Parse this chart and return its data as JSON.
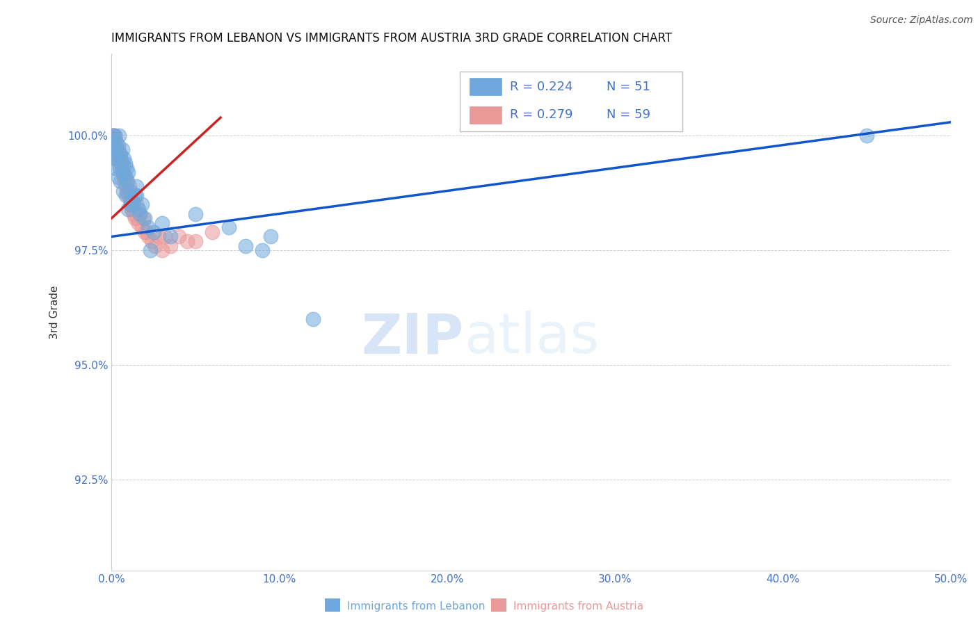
{
  "title": "IMMIGRANTS FROM LEBANON VS IMMIGRANTS FROM AUSTRIA 3RD GRADE CORRELATION CHART",
  "source": "Source: ZipAtlas.com",
  "ylabel": "3rd Grade",
  "xlim": [
    0.0,
    50.0
  ],
  "ylim": [
    90.5,
    101.8
  ],
  "yticks": [
    92.5,
    95.0,
    97.5,
    100.0
  ],
  "ytick_labels": [
    "92.5%",
    "95.0%",
    "97.5%",
    "100.0%"
  ],
  "xticks": [
    0.0,
    10.0,
    20.0,
    30.0,
    40.0,
    50.0
  ],
  "xtick_labels": [
    "0.0%",
    "10.0%",
    "20.0%",
    "30.0%",
    "40.0%",
    "50.0%"
  ],
  "legend_box": [
    {
      "text_r": "R = 0.224",
      "text_n": "N = 51",
      "color": "#a4c2f4"
    },
    {
      "text_r": "R = 0.279",
      "text_n": "N = 59",
      "color": "#ea9999"
    }
  ],
  "blue_scatter_x": [
    0.05,
    0.1,
    0.15,
    0.2,
    0.25,
    0.3,
    0.35,
    0.4,
    0.45,
    0.5,
    0.55,
    0.6,
    0.65,
    0.7,
    0.75,
    0.8,
    0.85,
    0.9,
    0.95,
    1.0,
    1.1,
    1.2,
    1.3,
    1.4,
    1.5,
    1.6,
    1.7,
    1.8,
    2.0,
    2.2,
    2.5,
    3.0,
    3.5,
    5.0,
    7.0,
    8.0,
    9.5,
    12.0,
    45.0,
    0.15,
    0.25,
    0.55,
    0.85,
    1.15,
    1.5,
    2.3,
    0.1,
    0.4,
    0.7,
    1.0,
    9.0
  ],
  "blue_scatter_y": [
    99.8,
    100.0,
    99.9,
    100.0,
    99.7,
    99.6,
    99.5,
    99.8,
    100.0,
    99.3,
    99.6,
    99.4,
    99.7,
    99.2,
    99.5,
    99.4,
    99.1,
    99.3,
    99.0,
    99.2,
    98.8,
    98.6,
    98.5,
    98.7,
    98.9,
    98.4,
    98.3,
    98.5,
    98.2,
    98.0,
    97.9,
    98.1,
    97.8,
    98.3,
    98.0,
    97.6,
    97.8,
    96.0,
    100.0,
    99.5,
    99.3,
    99.0,
    98.7,
    98.5,
    98.7,
    97.5,
    99.7,
    99.1,
    98.8,
    98.4,
    97.5
  ],
  "pink_scatter_x": [
    0.05,
    0.08,
    0.1,
    0.15,
    0.18,
    0.2,
    0.25,
    0.28,
    0.3,
    0.35,
    0.38,
    0.4,
    0.45,
    0.5,
    0.55,
    0.6,
    0.65,
    0.7,
    0.75,
    0.8,
    0.85,
    0.9,
    0.95,
    1.0,
    1.05,
    1.1,
    1.15,
    1.2,
    1.3,
    1.4,
    1.5,
    1.6,
    1.7,
    1.8,
    1.9,
    2.0,
    2.2,
    2.4,
    2.6,
    2.8,
    3.0,
    3.5,
    4.0,
    5.0,
    6.0,
    0.12,
    0.22,
    0.32,
    0.52,
    0.72,
    0.92,
    1.22,
    1.52,
    2.1,
    3.2,
    4.5,
    0.42,
    0.62,
    1.05
  ],
  "pink_scatter_y": [
    100.0,
    100.0,
    100.0,
    99.9,
    99.8,
    100.0,
    99.9,
    99.7,
    99.8,
    99.6,
    99.5,
    99.7,
    99.4,
    99.6,
    99.5,
    99.3,
    99.4,
    99.2,
    99.0,
    99.1,
    98.9,
    99.0,
    98.8,
    98.7,
    98.9,
    98.6,
    98.5,
    98.4,
    98.3,
    98.2,
    98.5,
    98.1,
    98.3,
    98.0,
    98.2,
    97.9,
    97.8,
    97.7,
    97.6,
    97.8,
    97.5,
    97.6,
    97.8,
    97.7,
    97.9,
    100.0,
    99.9,
    99.7,
    99.5,
    99.1,
    98.8,
    98.4,
    98.2,
    97.9,
    97.8,
    97.7,
    99.6,
    99.3,
    98.7
  ],
  "blue_line_x0": 0.0,
  "blue_line_x1": 50.0,
  "blue_line_y0": 97.8,
  "blue_line_y1": 100.3,
  "pink_line_x0": 0.0,
  "pink_line_x1": 6.5,
  "pink_line_y0": 98.2,
  "pink_line_y1": 100.4,
  "blue_color": "#6fa8dc",
  "pink_color": "#ea9999",
  "blue_line_color": "#1155cc",
  "pink_line_color": "#cc2222",
  "watermark_zip": "ZIP",
  "watermark_atlas": "atlas",
  "background_color": "#ffffff",
  "grid_color": "#aaaaaa",
  "axis_color": "#cccccc",
  "tick_color": "#4472c4",
  "title_fontsize": 12,
  "label_fontsize": 11,
  "tick_fontsize": 11,
  "source_fontsize": 10
}
